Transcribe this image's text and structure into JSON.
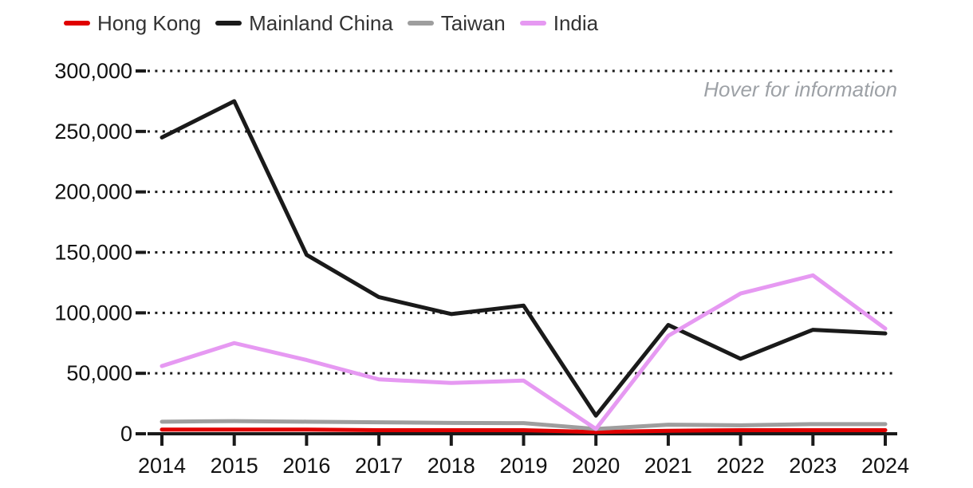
{
  "chart_data": {
    "type": "line",
    "title": "",
    "annotation": "Hover for information",
    "legend_position": "top-left",
    "grid": "dotted horizontal gridlines, solid baseline",
    "categories": [
      "2014",
      "2015",
      "2016",
      "2017",
      "2018",
      "2019",
      "2020",
      "2021",
      "2022",
      "2023",
      "2024"
    ],
    "series": [
      {
        "name": "Hong Kong",
        "color": "#e00000",
        "values": [
          3500,
          3500,
          3500,
          3000,
          3000,
          3000,
          1500,
          2500,
          3000,
          3000,
          3000
        ]
      },
      {
        "name": "Mainland China",
        "color": "#1a1a1a",
        "values": [
          245000,
          275000,
          148000,
          113000,
          99000,
          106000,
          15000,
          90000,
          62000,
          86000,
          83000
        ]
      },
      {
        "name": "Taiwan",
        "color": "#9e9e9e",
        "values": [
          10000,
          10500,
          10000,
          9500,
          9000,
          8800,
          4000,
          7500,
          7000,
          8000,
          8000
        ]
      },
      {
        "name": "India",
        "color": "#e699f2",
        "values": [
          56000,
          75000,
          61000,
          45000,
          42000,
          44000,
          4000,
          81000,
          116000,
          131000,
          87000
        ]
      }
    ],
    "ylim": [
      0,
      300000
    ],
    "ytick_step": 50000,
    "ytick_labels": [
      "0",
      "50,000",
      "100,000",
      "150,000",
      "200,000",
      "250,000",
      "300,000"
    ],
    "xlabel": "",
    "ylabel": ""
  },
  "colors": {
    "axis": "#1a1a1a",
    "tick_label": "#111111",
    "legend_text": "#333333",
    "hint_text": "#9da1a6",
    "background": "#ffffff"
  }
}
